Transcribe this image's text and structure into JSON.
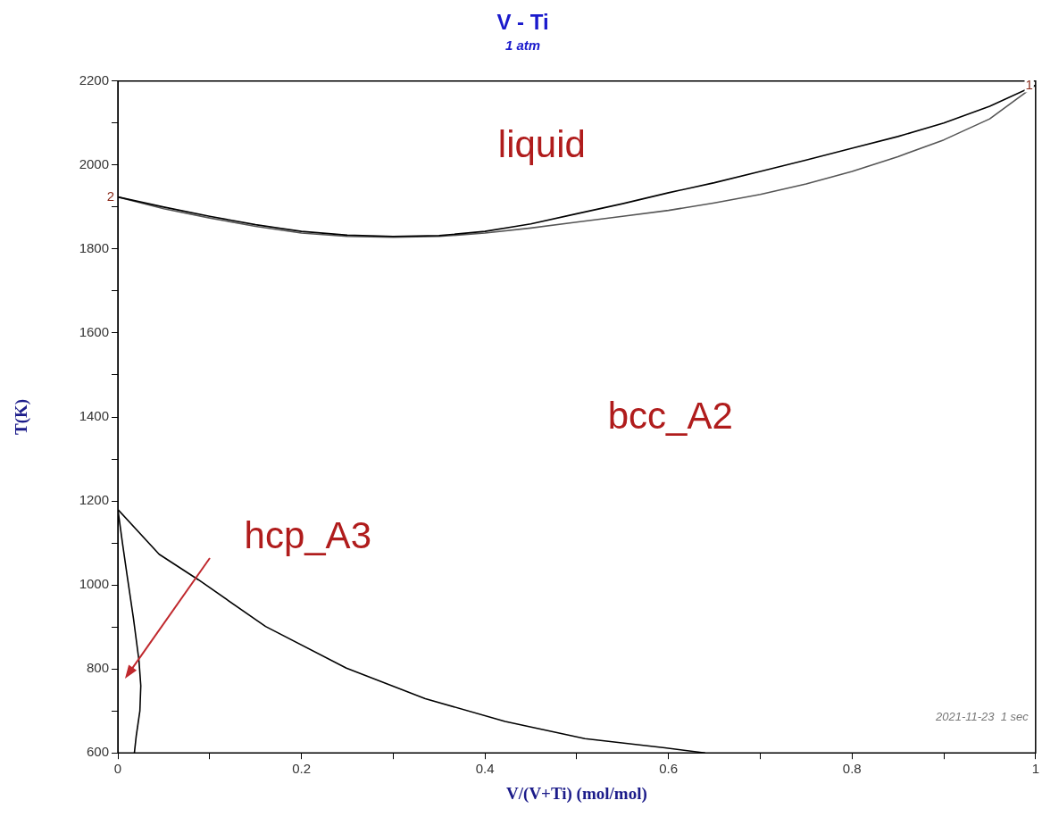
{
  "chart_data": {
    "type": "line",
    "title": "V - Ti",
    "subtitle": "1 atm",
    "xlabel": "V/(V+Ti) (mol/mol)",
    "ylabel": "T(K)",
    "xlim": [
      0,
      1
    ],
    "ylim": [
      600,
      2200
    ],
    "xticks": [
      0,
      {
        "value": 0.1,
        "label": null
      },
      0.2,
      {
        "value": 0.3,
        "label": null
      },
      0.4,
      {
        "value": 0.5,
        "label": null
      },
      0.6,
      {
        "value": 0.7,
        "label": null
      },
      0.8,
      {
        "value": 0.9,
        "label": null
      },
      1
    ],
    "yticks": [
      600,
      {
        "value": 700,
        "label": null
      },
      800,
      {
        "value": 900,
        "label": null
      },
      1000,
      {
        "value": 1100,
        "label": null
      },
      1200,
      {
        "value": 1300,
        "label": null
      },
      1400,
      {
        "value": 1500,
        "label": null
      },
      1600,
      {
        "value": 1700,
        "label": null
      },
      1800,
      {
        "value": 1900,
        "label": null
      },
      2000,
      {
        "value": 2100,
        "label": null
      },
      2200
    ],
    "grid": false,
    "legend": false,
    "marker": "none",
    "series": [
      {
        "color": "#000000",
        "x": [
          0,
          0.05,
          0.1,
          0.15,
          0.2,
          0.25,
          0.3,
          0.35,
          0.4,
          0.45,
          0.5,
          0.55,
          0.6,
          0.65,
          0.7,
          0.75,
          0.8,
          0.85,
          0.9,
          0.95,
          1
        ],
        "values": [
          1924,
          1900,
          1878,
          1858,
          1842,
          1833,
          1830,
          1832,
          1842,
          1860,
          1884,
          1908,
          1934,
          1958,
          1985,
          2012,
          2040,
          2068,
          2100,
          2140,
          2190
        ]
      },
      {
        "color": "#555555",
        "x": [
          0,
          0.05,
          0.1,
          0.15,
          0.2,
          0.25,
          0.3,
          0.35,
          0.4,
          0.45,
          0.5,
          0.55,
          0.6,
          0.65,
          0.7,
          0.75,
          0.8,
          0.85,
          0.9,
          0.95,
          1
        ],
        "values": [
          1924,
          1896,
          1874,
          1854,
          1838,
          1830,
          1828,
          1830,
          1838,
          1850,
          1864,
          1878,
          1892,
          1910,
          1930,
          1955,
          1985,
          2020,
          2060,
          2110,
          2190
        ]
      },
      {
        "color": "#000000",
        "x": [
          0,
          0.045,
          0.088,
          0.161,
          0.249,
          0.335,
          0.422,
          0.509,
          0.596,
          0.64
        ],
        "values": [
          1180,
          1073,
          1012,
          901,
          802,
          729,
          675,
          634,
          612,
          600
        ]
      },
      {
        "color": "#000000",
        "x": [
          0,
          0.005,
          0.01,
          0.017,
          0.023,
          0.025,
          0.024,
          0.02,
          0.018
        ],
        "values": [
          1180,
          1100,
          1024,
          920,
          820,
          760,
          700,
          640,
          600
        ]
      }
    ],
    "annotations": [
      "liquid",
      "bcc_A2",
      "hcp_A3",
      {
        "text": "2",
        "x": 0,
        "y": 1924
      },
      {
        "text": "1",
        "x": 1,
        "y": 2190
      },
      "2021-11-23  1 sec"
    ]
  }
}
